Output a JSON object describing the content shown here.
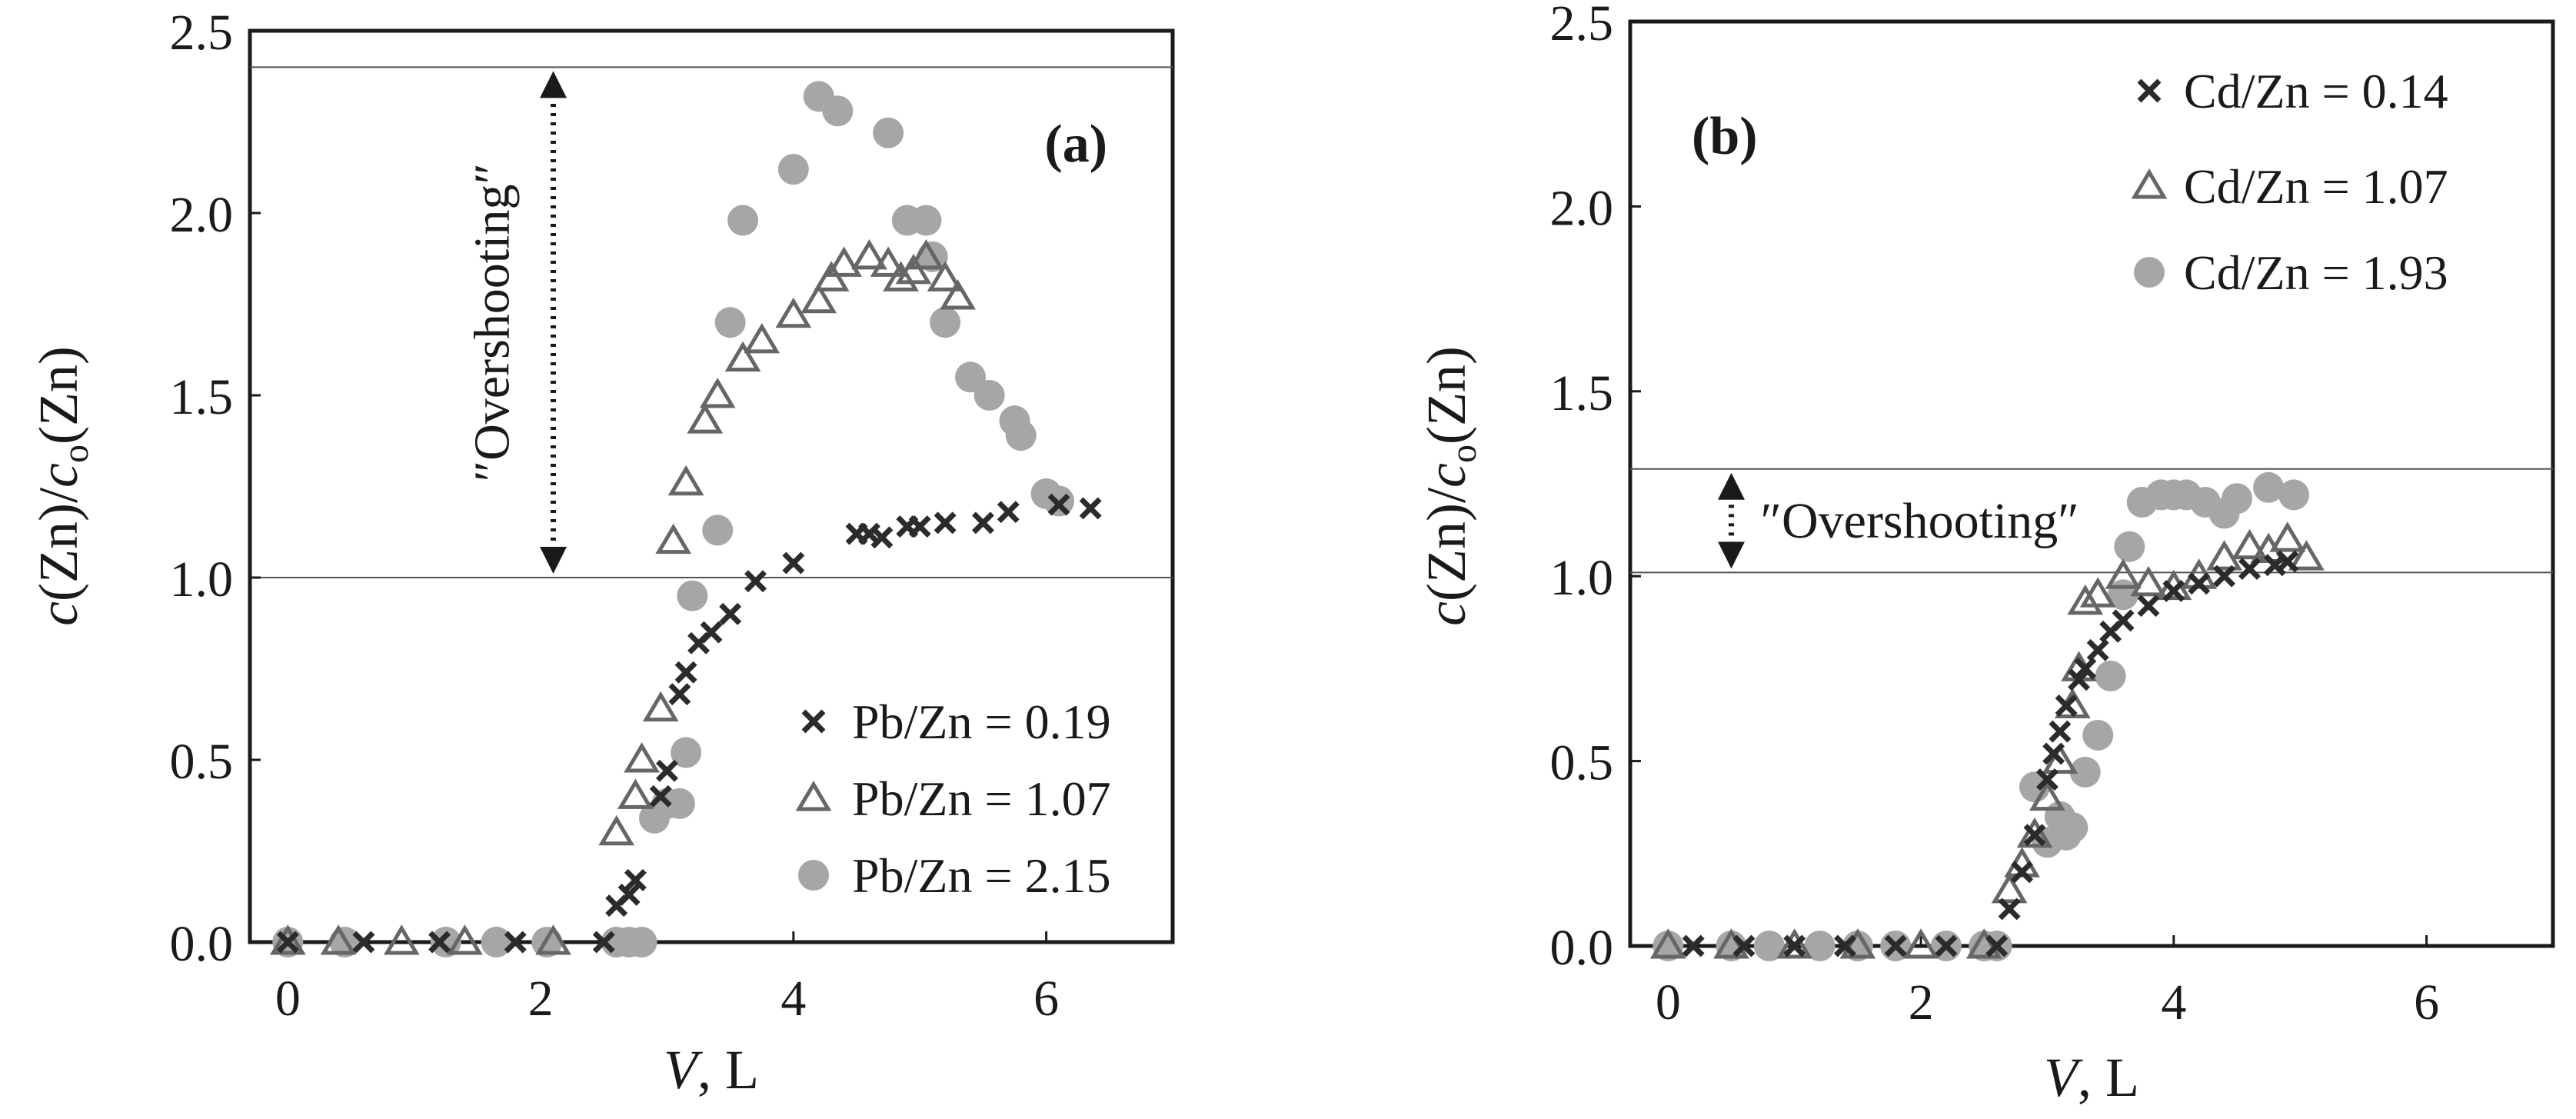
{
  "chart_data": [
    {
      "type": "scatter",
      "panel_label": "a",
      "xlabel": "V, L",
      "ylabel": "c(Zn)/co(Zn)",
      "xlim": [
        -0.3,
        7
      ],
      "ylim": [
        0,
        2.5
      ],
      "x_ticks": [
        0,
        2,
        4,
        6
      ],
      "y_ticks": [
        0.0,
        0.5,
        1.0,
        1.5,
        2.0,
        2.5
      ],
      "x_tick_labels": [
        "0",
        "2",
        "4",
        "6"
      ],
      "y_tick_labels": [
        "0.0",
        "0.5",
        "1.0",
        "1.5",
        "2.0",
        "2.5"
      ],
      "ref_lines": [
        1.0,
        2.4
      ],
      "annotation": {
        "text": "″Overshooting″",
        "from": 1.0,
        "to": 2.4,
        "x": 2.1
      },
      "legend_position": "bottom-right",
      "series": [
        {
          "name": "Pb/Zn = 0.19",
          "marker": "cross",
          "x": [
            0,
            0.6,
            1.2,
            1.8,
            2.5,
            2.6,
            2.7,
            2.75,
            2.95,
            3.0,
            3.1,
            3.15,
            3.25,
            3.35,
            3.5,
            3.7,
            4.0,
            4.5,
            4.6,
            4.7,
            4.9,
            5.0,
            5.2,
            5.5,
            5.7,
            6.1,
            6.35
          ],
          "y": [
            0,
            0,
            0,
            0,
            0,
            0.1,
            0.13,
            0.17,
            0.4,
            0.47,
            0.68,
            0.74,
            0.82,
            0.85,
            0.9,
            0.99,
            1.04,
            1.12,
            1.12,
            1.11,
            1.14,
            1.14,
            1.15,
            1.15,
            1.18,
            1.2,
            1.19
          ]
        },
        {
          "name": "Pb/Zn = 1.07",
          "marker": "triangle",
          "x": [
            0,
            0.4,
            0.9,
            1.4,
            2.1,
            2.6,
            2.75,
            2.8,
            2.95,
            3.05,
            3.15,
            3.3,
            3.4,
            3.6,
            3.75,
            4.0,
            4.2,
            4.3,
            4.4,
            4.6,
            4.75,
            4.85,
            4.95,
            5.05,
            5.2,
            5.3
          ],
          "y": [
            0,
            0,
            0,
            0,
            0,
            0.3,
            0.4,
            0.5,
            0.64,
            1.1,
            1.26,
            1.43,
            1.5,
            1.6,
            1.65,
            1.72,
            1.76,
            1.82,
            1.86,
            1.88,
            1.86,
            1.82,
            1.84,
            1.88,
            1.82,
            1.77
          ]
        },
        {
          "name": "Pb/Zn = 2.15",
          "marker": "circle",
          "x": [
            0,
            0.45,
            1.25,
            1.65,
            2.05,
            2.6,
            2.7,
            2.8,
            2.9,
            3.0,
            3.1,
            3.15,
            3.2,
            3.4,
            3.5,
            3.6,
            4.0,
            4.2,
            4.35,
            4.75,
            4.9,
            5.05,
            5.1,
            5.2,
            5.4,
            5.55,
            5.75,
            5.8,
            6.0,
            6.1
          ],
          "y": [
            0,
            0,
            0,
            0,
            0,
            0,
            0,
            0,
            0.34,
            0.38,
            0.38,
            0.52,
            0.95,
            1.13,
            1.7,
            1.98,
            2.12,
            2.32,
            2.28,
            2.22,
            1.98,
            1.98,
            1.88,
            1.7,
            1.55,
            1.5,
            1.43,
            1.39,
            1.23,
            1.21
          ]
        }
      ]
    },
    {
      "type": "scatter",
      "panel_label": "b",
      "xlabel": "V, L",
      "ylabel": "c(Zn)/co(Zn)",
      "xlim": [
        -0.3,
        7
      ],
      "ylim": [
        0,
        2.5
      ],
      "x_ticks": [
        0,
        2,
        4,
        6
      ],
      "y_ticks": [
        0.0,
        0.5,
        1.0,
        1.5,
        2.0,
        2.5
      ],
      "x_tick_labels": [
        "0",
        "2",
        "4",
        "6"
      ],
      "y_tick_labels": [
        "0.0",
        "0.5",
        "1.0",
        "1.5",
        "2.0",
        "2.5"
      ],
      "ref_lines": [
        1.01,
        1.29
      ],
      "annotation": {
        "text": "″Overshooting″",
        "from": 1.01,
        "to": 1.29,
        "x": 0.5
      },
      "legend_position": "top-right",
      "series": [
        {
          "name": "Cd/Zn = 0.14",
          "marker": "cross",
          "x": [
            0.2,
            0.6,
            1.0,
            1.4,
            1.8,
            2.2,
            2.6,
            2.7,
            2.8,
            2.9,
            3.0,
            3.05,
            3.1,
            3.15,
            3.25,
            3.3,
            3.4,
            3.5,
            3.6,
            3.8,
            4.0,
            4.2,
            4.4,
            4.6,
            4.8,
            4.9
          ],
          "y": [
            0,
            0,
            0,
            0,
            0,
            0,
            0,
            0.1,
            0.2,
            0.3,
            0.45,
            0.52,
            0.58,
            0.65,
            0.72,
            0.75,
            0.8,
            0.85,
            0.88,
            0.92,
            0.96,
            0.98,
            1.0,
            1.02,
            1.03,
            1.04
          ]
        },
        {
          "name": "Cd/Zn = 1.07",
          "marker": "triangle",
          "x": [
            0,
            0.5,
            1.0,
            1.5,
            2.0,
            2.5,
            2.7,
            2.8,
            2.9,
            3.0,
            3.1,
            3.2,
            3.25,
            3.3,
            3.4,
            3.6,
            3.8,
            4.0,
            4.2,
            4.4,
            4.6,
            4.75,
            4.9,
            5.05
          ],
          "y": [
            0,
            0,
            0,
            0,
            0,
            0,
            0.15,
            0.22,
            0.3,
            0.4,
            0.5,
            0.65,
            0.75,
            0.93,
            0.95,
            1.0,
            0.98,
            0.97,
            1.0,
            1.05,
            1.08,
            1.07,
            1.1,
            1.05
          ]
        },
        {
          "name": "Cd/Zn = 1.93",
          "marker": "circle",
          "x": [
            0,
            0.5,
            0.8,
            1.2,
            1.5,
            1.8,
            2.2,
            2.5,
            2.6,
            2.9,
            3.0,
            3.1,
            3.15,
            3.2,
            3.3,
            3.4,
            3.5,
            3.6,
            3.65,
            3.75,
            3.9,
            4.0,
            4.1,
            4.25,
            4.4,
            4.5,
            4.75,
            4.95
          ],
          "y": [
            0,
            0,
            0,
            0,
            0,
            0,
            0,
            0,
            0,
            0.43,
            0.28,
            0.35,
            0.3,
            0.32,
            0.47,
            0.57,
            0.73,
            0.95,
            1.08,
            1.2,
            1.22,
            1.22,
            1.22,
            1.2,
            1.17,
            1.21,
            1.24,
            1.22
          ]
        }
      ]
    }
  ]
}
